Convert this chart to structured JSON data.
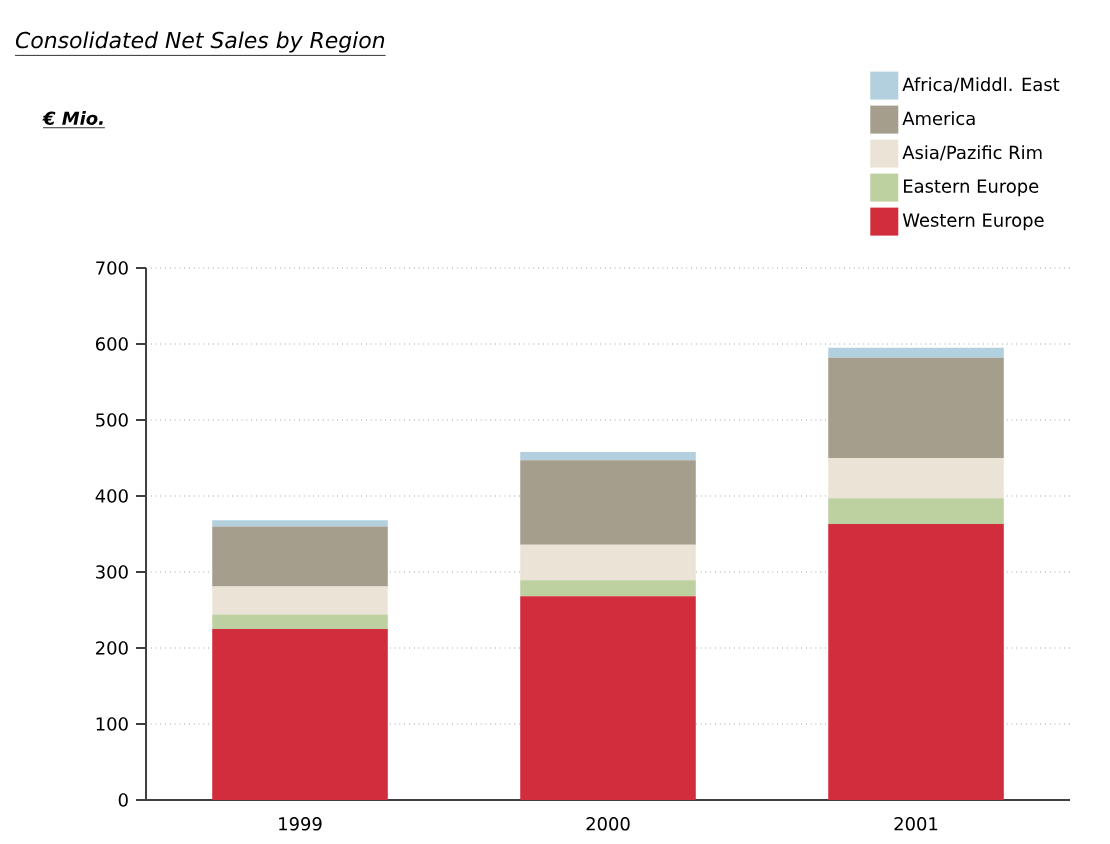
{
  "chart_data": {
    "type": "bar",
    "title": "Consolidated Net Sales by Region",
    "subtitle": "€ Mio.",
    "categories": [
      "1999",
      "2000",
      "2001"
    ],
    "stacked": true,
    "series": [
      {
        "name": "Western Europe",
        "color": "#d12d3c",
        "values": [
          225,
          268,
          363
        ]
      },
      {
        "name": "Eastern Europe",
        "color": "#bdd0a0",
        "values": [
          19,
          21,
          34
        ]
      },
      {
        "name": "Asia/Pazific Rim",
        "color": "#ebe3d6",
        "values": [
          37,
          47,
          53
        ]
      },
      {
        "name": "America",
        "color": "#a59e8c",
        "values": [
          79,
          111,
          132
        ]
      },
      {
        "name": "Africa/Middl. East",
        "color": "#b3d0de",
        "values": [
          8,
          11,
          13
        ]
      }
    ],
    "ylim": [
      0,
      700
    ],
    "yticks": [
      0,
      100,
      200,
      300,
      400,
      500,
      600,
      700
    ],
    "grid": "y",
    "legend": "top right"
  }
}
